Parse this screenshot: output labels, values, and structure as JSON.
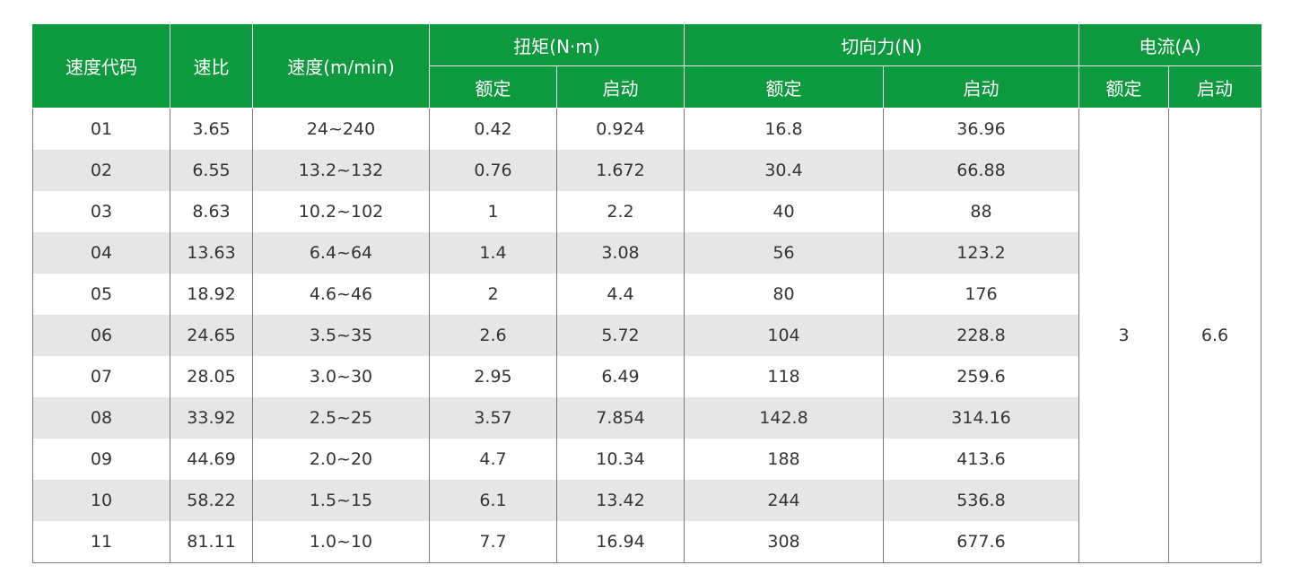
{
  "header": {
    "speed_code": "速度代码",
    "ratio": "速比",
    "speed": "速度(m/min)",
    "torque": "扭矩(N·m)",
    "tangential_force": "切向力(N)",
    "current": "电流(A)",
    "rated": "额定",
    "start": "启动"
  },
  "rows": [
    {
      "code": "01",
      "ratio": "3.65",
      "speed": "24~240",
      "torque_rated": "0.42",
      "torque_start": "0.924",
      "force_rated": "16.8",
      "force_start": "36.96"
    },
    {
      "code": "02",
      "ratio": "6.55",
      "speed": "13.2~132",
      "torque_rated": "0.76",
      "torque_start": "1.672",
      "force_rated": "30.4",
      "force_start": "66.88"
    },
    {
      "code": "03",
      "ratio": "8.63",
      "speed": "10.2~102",
      "torque_rated": "1",
      "torque_start": "2.2",
      "force_rated": "40",
      "force_start": "88"
    },
    {
      "code": "04",
      "ratio": "13.63",
      "speed": "6.4~64",
      "torque_rated": "1.4",
      "torque_start": "3.08",
      "force_rated": "56",
      "force_start": "123.2"
    },
    {
      "code": "05",
      "ratio": "18.92",
      "speed": "4.6~46",
      "torque_rated": "2",
      "torque_start": "4.4",
      "force_rated": "80",
      "force_start": "176"
    },
    {
      "code": "06",
      "ratio": "24.65",
      "speed": "3.5~35",
      "torque_rated": "2.6",
      "torque_start": "5.72",
      "force_rated": "104",
      "force_start": "228.8"
    },
    {
      "code": "07",
      "ratio": "28.05",
      "speed": "3.0~30",
      "torque_rated": "2.95",
      "torque_start": "6.49",
      "force_rated": "118",
      "force_start": "259.6"
    },
    {
      "code": "08",
      "ratio": "33.92",
      "speed": "2.5~25",
      "torque_rated": "3.57",
      "torque_start": "7.854",
      "force_rated": "142.8",
      "force_start": "314.16"
    },
    {
      "code": "09",
      "ratio": "44.69",
      "speed": "2.0~20",
      "torque_rated": "4.7",
      "torque_start": "10.34",
      "force_rated": "188",
      "force_start": "413.6"
    },
    {
      "code": "10",
      "ratio": "58.22",
      "speed": "1.5~15",
      "torque_rated": "6.1",
      "torque_start": "13.42",
      "force_rated": "244",
      "force_start": "536.8"
    },
    {
      "code": "11",
      "ratio": "81.11",
      "speed": "1.0~10",
      "torque_rated": "7.7",
      "torque_start": "16.94",
      "force_rated": "308",
      "force_start": "677.6"
    }
  ],
  "current": {
    "rated": "3",
    "start": "6.6"
  },
  "colors": {
    "header_bg": "#0d9a3f",
    "stripe_bg": "#e6e6e6"
  }
}
